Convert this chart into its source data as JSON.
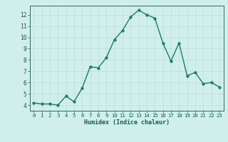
{
  "x": [
    0,
    1,
    2,
    3,
    4,
    5,
    6,
    7,
    8,
    9,
    10,
    11,
    12,
    13,
    14,
    15,
    16,
    17,
    18,
    19,
    20,
    21,
    22,
    23
  ],
  "y": [
    4.2,
    4.1,
    4.1,
    4.0,
    4.8,
    4.3,
    5.5,
    7.4,
    7.3,
    8.2,
    9.8,
    10.6,
    11.8,
    12.4,
    12.0,
    11.7,
    9.5,
    7.9,
    9.5,
    6.6,
    6.9,
    5.9,
    6.0,
    5.6
  ],
  "xlabel": "Humidex (Indice chaleur)",
  "ylim": [
    3.5,
    12.8
  ],
  "xlim": [
    -0.5,
    23.5
  ],
  "yticks": [
    4,
    5,
    6,
    7,
    8,
    9,
    10,
    11,
    12
  ],
  "xticks": [
    0,
    1,
    2,
    3,
    4,
    5,
    6,
    7,
    8,
    9,
    10,
    11,
    12,
    13,
    14,
    15,
    16,
    17,
    18,
    19,
    20,
    21,
    22,
    23
  ],
  "line_color": "#1a7a6e",
  "marker_color": "#1a7a6e",
  "bg_color": "#d0eeea",
  "grid_color": "#c0ddd8",
  "axis_color": "#336660",
  "text_color": "#1a5a50",
  "xlabel_fontsize": 6.0,
  "tick_fontsize": 5.2
}
